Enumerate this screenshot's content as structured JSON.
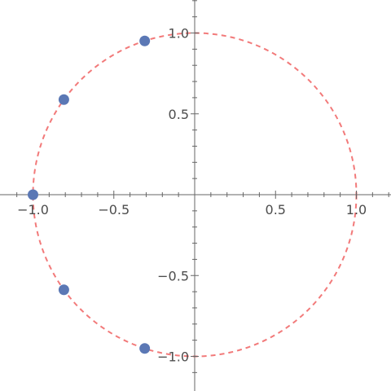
{
  "chart_data": {
    "type": "scatter",
    "title": "",
    "xlabel": "",
    "ylabel": "",
    "xlim": [
      -1.2,
      1.2
    ],
    "ylim": [
      -1.2,
      1.2
    ],
    "grid": false,
    "axes_through_origin": true,
    "x_ticks": [
      {
        "value": -1.0,
        "label": "−1.0"
      },
      {
        "value": -0.5,
        "label": "−0.5"
      },
      {
        "value": 0.5,
        "label": "0.5"
      },
      {
        "value": 1.0,
        "label": "1.0"
      }
    ],
    "y_ticks": [
      {
        "value": 1.0,
        "label": "1.0"
      },
      {
        "value": 0.5,
        "label": "0.5"
      },
      {
        "value": -0.5,
        "label": "−0.5"
      },
      {
        "value": -1.0,
        "label": "−1.0"
      }
    ],
    "minor_tick_step": 0.1,
    "points": [
      {
        "x": -0.309,
        "y": 0.951
      },
      {
        "x": -0.809,
        "y": 0.588
      },
      {
        "x": -1.0,
        "y": 0.0
      },
      {
        "x": -0.809,
        "y": -0.588
      },
      {
        "x": -0.309,
        "y": -0.951
      }
    ],
    "reference_circle": {
      "center": [
        0,
        0
      ],
      "radius": 1.0,
      "style": "dashed"
    },
    "colors": {
      "points": "#5b78b5",
      "circle": "#f27a7a",
      "axes": "#666666",
      "tick_labels": "#4d4d4d"
    }
  }
}
